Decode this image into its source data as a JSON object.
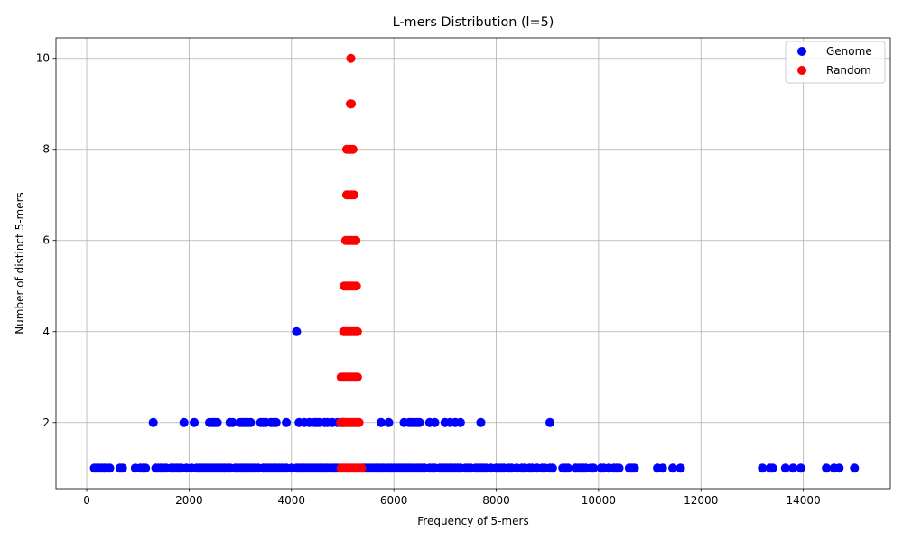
{
  "chart_data": {
    "type": "scatter",
    "title": "L-mers Distribution (l=5)",
    "xlabel": "Frequency of 5-mers",
    "ylabel": "Number of distinct 5-mers",
    "xlim": [
      -600,
      15700
    ],
    "ylim": [
      0.55,
      10.45
    ],
    "x_ticks": [
      0,
      2000,
      4000,
      6000,
      8000,
      10000,
      12000,
      14000
    ],
    "y_ticks": [
      2,
      4,
      6,
      8,
      10
    ],
    "grid": true,
    "legend_position": "top-right",
    "series": [
      {
        "name": "Genome",
        "color": "#0000ff",
        "points": [
          [
            4100,
            4
          ],
          [
            1300,
            2
          ],
          [
            1900,
            2
          ],
          [
            2100,
            2
          ],
          [
            2400,
            2
          ],
          [
            2450,
            2
          ],
          [
            2500,
            2
          ],
          [
            2550,
            2
          ],
          [
            2800,
            2
          ],
          [
            2850,
            2
          ],
          [
            3000,
            2
          ],
          [
            3050,
            2
          ],
          [
            3100,
            2
          ],
          [
            3150,
            2
          ],
          [
            3200,
            2
          ],
          [
            3400,
            2
          ],
          [
            3450,
            2
          ],
          [
            3500,
            2
          ],
          [
            3600,
            2
          ],
          [
            3650,
            2
          ],
          [
            3700,
            2
          ],
          [
            3900,
            2
          ],
          [
            4150,
            2
          ],
          [
            4250,
            2
          ],
          [
            4350,
            2
          ],
          [
            4450,
            2
          ],
          [
            4500,
            2
          ],
          [
            4550,
            2
          ],
          [
            4650,
            2
          ],
          [
            4700,
            2
          ],
          [
            4800,
            2
          ],
          [
            4900,
            2
          ],
          [
            5000,
            2
          ],
          [
            5750,
            2
          ],
          [
            5900,
            2
          ],
          [
            6200,
            2
          ],
          [
            6300,
            2
          ],
          [
            6350,
            2
          ],
          [
            6400,
            2
          ],
          [
            6450,
            2
          ],
          [
            6500,
            2
          ],
          [
            6700,
            2
          ],
          [
            6800,
            2
          ],
          [
            7000,
            2
          ],
          [
            7100,
            2
          ],
          [
            7200,
            2
          ],
          [
            7300,
            2
          ],
          [
            7700,
            2
          ],
          [
            9050,
            2
          ],
          [
            150,
            1
          ],
          [
            200,
            1
          ],
          [
            250,
            1
          ],
          [
            300,
            1
          ],
          [
            350,
            1
          ],
          [
            400,
            1
          ],
          [
            450,
            1
          ],
          [
            650,
            1
          ],
          [
            700,
            1
          ],
          [
            950,
            1
          ],
          [
            1050,
            1
          ],
          [
            1100,
            1
          ],
          [
            1150,
            1
          ],
          [
            1350,
            1
          ],
          [
            1400,
            1
          ],
          [
            1450,
            1
          ],
          [
            1500,
            1
          ],
          [
            1550,
            1
          ],
          [
            1650,
            1
          ],
          [
            1700,
            1
          ],
          [
            1750,
            1
          ],
          [
            1800,
            1
          ],
          [
            1850,
            1
          ],
          [
            1950,
            1
          ],
          [
            2050,
            1
          ],
          [
            2150,
            1
          ],
          [
            2200,
            1
          ],
          [
            2250,
            1
          ],
          [
            2300,
            1
          ],
          [
            2350,
            1
          ],
          [
            2400,
            1
          ],
          [
            2450,
            1
          ],
          [
            2500,
            1
          ],
          [
            2550,
            1
          ],
          [
            2600,
            1
          ],
          [
            2650,
            1
          ],
          [
            2700,
            1
          ],
          [
            2750,
            1
          ],
          [
            2800,
            1
          ],
          [
            2900,
            1
          ],
          [
            2950,
            1
          ],
          [
            3000,
            1
          ],
          [
            3050,
            1
          ],
          [
            3100,
            1
          ],
          [
            3150,
            1
          ],
          [
            3200,
            1
          ],
          [
            3250,
            1
          ],
          [
            3300,
            1
          ],
          [
            3350,
            1
          ],
          [
            3450,
            1
          ],
          [
            3500,
            1
          ],
          [
            3550,
            1
          ],
          [
            3600,
            1
          ],
          [
            3650,
            1
          ],
          [
            3700,
            1
          ],
          [
            3750,
            1
          ],
          [
            3800,
            1
          ],
          [
            3850,
            1
          ],
          [
            3900,
            1
          ],
          [
            4000,
            1
          ],
          [
            4100,
            1
          ],
          [
            4150,
            1
          ],
          [
            4200,
            1
          ],
          [
            4250,
            1
          ],
          [
            4300,
            1
          ],
          [
            4350,
            1
          ],
          [
            4400,
            1
          ],
          [
            4450,
            1
          ],
          [
            4500,
            1
          ],
          [
            4550,
            1
          ],
          [
            4600,
            1
          ],
          [
            4650,
            1
          ],
          [
            4700,
            1
          ],
          [
            4750,
            1
          ],
          [
            4800,
            1
          ],
          [
            4850,
            1
          ],
          [
            4900,
            1
          ],
          [
            5400,
            1
          ],
          [
            5450,
            1
          ],
          [
            5500,
            1
          ],
          [
            5550,
            1
          ],
          [
            5600,
            1
          ],
          [
            5650,
            1
          ],
          [
            5700,
            1
          ],
          [
            5750,
            1
          ],
          [
            5800,
            1
          ],
          [
            5850,
            1
          ],
          [
            5900,
            1
          ],
          [
            5950,
            1
          ],
          [
            6000,
            1
          ],
          [
            6050,
            1
          ],
          [
            6100,
            1
          ],
          [
            6150,
            1
          ],
          [
            6200,
            1
          ],
          [
            6250,
            1
          ],
          [
            6300,
            1
          ],
          [
            6350,
            1
          ],
          [
            6400,
            1
          ],
          [
            6450,
            1
          ],
          [
            6500,
            1
          ],
          [
            6550,
            1
          ],
          [
            6600,
            1
          ],
          [
            6700,
            1
          ],
          [
            6750,
            1
          ],
          [
            6800,
            1
          ],
          [
            6900,
            1
          ],
          [
            6950,
            1
          ],
          [
            7000,
            1
          ],
          [
            7050,
            1
          ],
          [
            7100,
            1
          ],
          [
            7150,
            1
          ],
          [
            7200,
            1
          ],
          [
            7250,
            1
          ],
          [
            7300,
            1
          ],
          [
            7400,
            1
          ],
          [
            7450,
            1
          ],
          [
            7500,
            1
          ],
          [
            7600,
            1
          ],
          [
            7650,
            1
          ],
          [
            7700,
            1
          ],
          [
            7750,
            1
          ],
          [
            7800,
            1
          ],
          [
            7900,
            1
          ],
          [
            8000,
            1
          ],
          [
            8050,
            1
          ],
          [
            8100,
            1
          ],
          [
            8150,
            1
          ],
          [
            8250,
            1
          ],
          [
            8300,
            1
          ],
          [
            8400,
            1
          ],
          [
            8500,
            1
          ],
          [
            8550,
            1
          ],
          [
            8650,
            1
          ],
          [
            8700,
            1
          ],
          [
            8800,
            1
          ],
          [
            8900,
            1
          ],
          [
            8950,
            1
          ],
          [
            9050,
            1
          ],
          [
            9100,
            1
          ],
          [
            9300,
            1
          ],
          [
            9350,
            1
          ],
          [
            9400,
            1
          ],
          [
            9550,
            1
          ],
          [
            9600,
            1
          ],
          [
            9650,
            1
          ],
          [
            9700,
            1
          ],
          [
            9750,
            1
          ],
          [
            9850,
            1
          ],
          [
            9900,
            1
          ],
          [
            10050,
            1
          ],
          [
            10100,
            1
          ],
          [
            10200,
            1
          ],
          [
            10300,
            1
          ],
          [
            10350,
            1
          ],
          [
            10400,
            1
          ],
          [
            10600,
            1
          ],
          [
            10650,
            1
          ],
          [
            10700,
            1
          ],
          [
            11150,
            1
          ],
          [
            11250,
            1
          ],
          [
            11450,
            1
          ],
          [
            11600,
            1
          ],
          [
            13200,
            1
          ],
          [
            13350,
            1
          ],
          [
            13400,
            1
          ],
          [
            13650,
            1
          ],
          [
            13800,
            1
          ],
          [
            13950,
            1
          ],
          [
            14450,
            1
          ],
          [
            14600,
            1
          ],
          [
            14700,
            1
          ],
          [
            15000,
            1
          ]
        ]
      },
      {
        "name": "Random",
        "color": "#ff0000",
        "points": [
          [
            5160,
            10
          ],
          [
            5150,
            9
          ],
          [
            5170,
            9
          ],
          [
            5080,
            8
          ],
          [
            5120,
            8
          ],
          [
            5160,
            8
          ],
          [
            5200,
            8
          ],
          [
            5080,
            7
          ],
          [
            5130,
            7
          ],
          [
            5180,
            7
          ],
          [
            5220,
            7
          ],
          [
            5060,
            6
          ],
          [
            5100,
            6
          ],
          [
            5140,
            6
          ],
          [
            5180,
            6
          ],
          [
            5220,
            6
          ],
          [
            5260,
            6
          ],
          [
            5030,
            5
          ],
          [
            5070,
            5
          ],
          [
            5110,
            5
          ],
          [
            5150,
            5
          ],
          [
            5190,
            5
          ],
          [
            5230,
            5
          ],
          [
            5270,
            5
          ],
          [
            5020,
            4
          ],
          [
            5060,
            4
          ],
          [
            5100,
            4
          ],
          [
            5140,
            4
          ],
          [
            5180,
            4
          ],
          [
            5220,
            4
          ],
          [
            5260,
            4
          ],
          [
            5290,
            4
          ],
          [
            4970,
            3
          ],
          [
            5010,
            3
          ],
          [
            5050,
            3
          ],
          [
            5090,
            3
          ],
          [
            5130,
            3
          ],
          [
            5170,
            3
          ],
          [
            5210,
            3
          ],
          [
            5250,
            3
          ],
          [
            5290,
            3
          ],
          [
            4960,
            2
          ],
          [
            5000,
            2
          ],
          [
            5040,
            2
          ],
          [
            5080,
            2
          ],
          [
            5120,
            2
          ],
          [
            5160,
            2
          ],
          [
            5200,
            2
          ],
          [
            5240,
            2
          ],
          [
            5280,
            2
          ],
          [
            5320,
            2
          ],
          [
            4970,
            1
          ],
          [
            5010,
            1
          ],
          [
            5050,
            1
          ],
          [
            5090,
            1
          ],
          [
            5130,
            1
          ],
          [
            5170,
            1
          ],
          [
            5210,
            1
          ],
          [
            5250,
            1
          ],
          [
            5290,
            1
          ],
          [
            5330,
            1
          ],
          [
            5370,
            1
          ]
        ]
      }
    ]
  }
}
